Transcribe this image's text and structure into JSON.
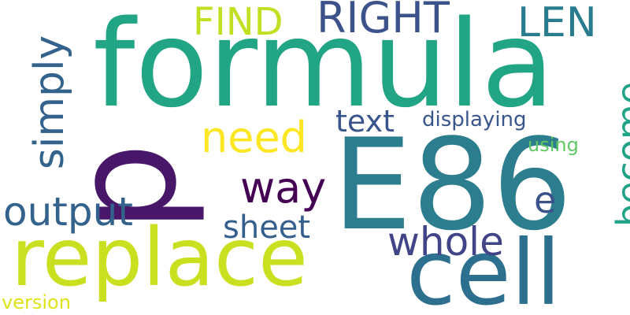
{
  "words": {
    "formula": {
      "text": "formula",
      "color": "#21a585"
    },
    "e86": {
      "text": "E86",
      "color": "#2c7e8e"
    },
    "replace": {
      "text": "replace",
      "color": "#c9e020"
    },
    "cell": {
      "text": "cell",
      "color": "#2d6f8e"
    },
    "p": {
      "text": "p",
      "color": "#481769"
    },
    "right": {
      "text": "RIGHT",
      "color": "#3b528b"
    },
    "find": {
      "text": "FIND",
      "color": "#c2df23"
    },
    "len": {
      "text": "LEN",
      "color": "#287c8e"
    },
    "simply": {
      "text": "simply",
      "color": "#33638d"
    },
    "become": {
      "text": "become",
      "color": "#20a386"
    },
    "need": {
      "text": "need",
      "color": "#fde725"
    },
    "text": {
      "text": "text",
      "color": "#3a548c"
    },
    "displaying": {
      "text": "displaying",
      "color": "#39568c"
    },
    "using": {
      "text": "using",
      "color": "#5ec962"
    },
    "way": {
      "text": "way",
      "color": "#440154"
    },
    "e": {
      "text": "e",
      "color": "#3b528b"
    },
    "output": {
      "text": "output",
      "color": "#33638d"
    },
    "sheet": {
      "text": "sheet",
      "color": "#35608d"
    },
    "whole": {
      "text": "whole",
      "color": "#414487"
    },
    "version": {
      "text": "version",
      "color": "#dde318"
    }
  }
}
